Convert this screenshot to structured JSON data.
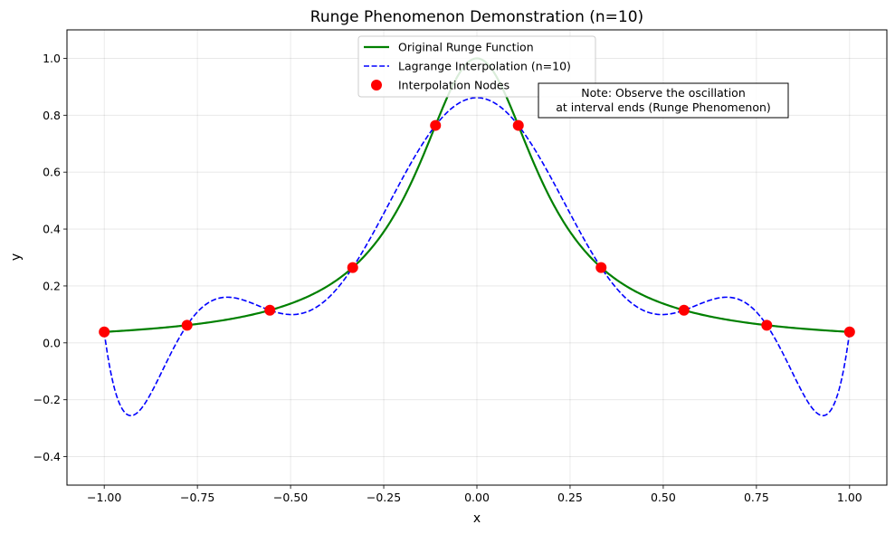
{
  "chart_data": {
    "type": "line",
    "title": "Runge Phenomenon Demonstration (n=10)",
    "xlabel": "x",
    "ylabel": "y",
    "xlim": [
      -1.1,
      1.1
    ],
    "ylim": [
      -0.5,
      1.1
    ],
    "grid": true,
    "legend_position": "top-center",
    "xticks": [
      -1.0,
      -0.75,
      -0.5,
      -0.25,
      0.0,
      0.25,
      0.5,
      0.75,
      1.0
    ],
    "xtick_labels": [
      "−1.00",
      "−0.75",
      "−0.50",
      "−0.25",
      "0.00",
      "0.25",
      "0.50",
      "0.75",
      "1.00"
    ],
    "yticks": [
      -0.4,
      -0.2,
      0.0,
      0.2,
      0.4,
      0.6,
      0.8,
      1.0
    ],
    "ytick_labels": [
      "−0.4",
      "−0.2",
      "0.0",
      "0.2",
      "0.4",
      "0.6",
      "0.8",
      "1.0"
    ],
    "series": [
      {
        "name": "Original Runge Function",
        "style": "solid",
        "color": "#008000",
        "function": "1/(1+25x^2)",
        "x_range": [
          -1,
          1
        ]
      },
      {
        "name": "Lagrange Interpolation (n=10)",
        "style": "dashed",
        "color": "#0000ff",
        "method": "lagrange through interpolation nodes",
        "x_range": [
          -1,
          1
        ]
      },
      {
        "name": "Interpolation Nodes",
        "style": "markers",
        "color": "#ff0000",
        "x": [
          -1.0,
          -0.7778,
          -0.5556,
          -0.3333,
          -0.1111,
          0.1111,
          0.3333,
          0.5556,
          0.7778,
          1.0
        ],
        "y": [
          0.0385,
          0.062,
          0.1147,
          0.2647,
          0.7642,
          0.7642,
          0.2647,
          0.1147,
          0.062,
          0.0385
        ]
      }
    ],
    "annotation": {
      "lines": [
        "Note: Observe the oscillation",
        "at interval ends (Runge Phenomenon)"
      ],
      "x": 0.5,
      "y": 0.87
    }
  }
}
